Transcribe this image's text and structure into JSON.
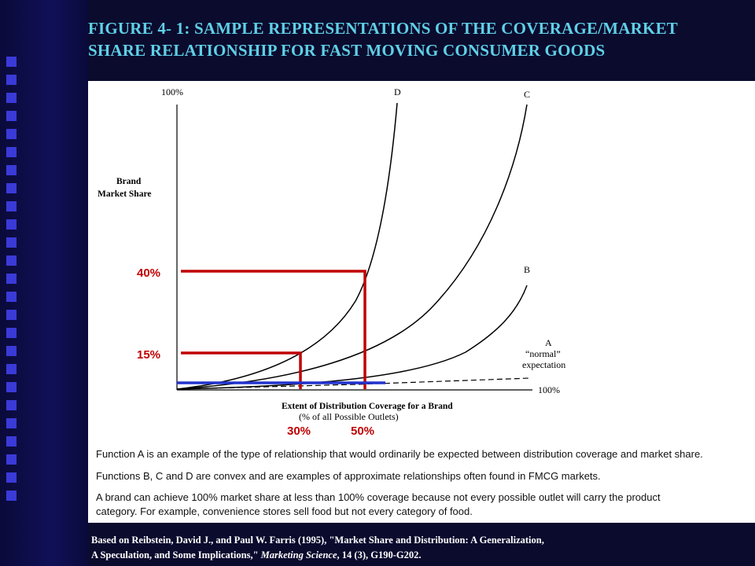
{
  "title": {
    "line1": "FIGURE 4- 1: SAMPLE REPRESENTATIONS OF THE COVERAGE/MARKET",
    "line2": "SHARE RELATIONSHIP FOR FAST MOVING CONSUMER GOODS"
  },
  "chart": {
    "y_top_label": "100%",
    "x_right_label": "100%",
    "ylabel_line1": "Brand",
    "ylabel_line2": "Market  Share",
    "xlabel_line1": "Extent of Distribution Coverage for a Brand",
    "xlabel_line2": "(% of all Possible Outlets)",
    "curve_D": "D",
    "curve_C": "C",
    "curve_B": "B",
    "curve_A": "A",
    "curve_A_note1": "“normal”",
    "curve_A_note2": "expectation",
    "marker_y_40": "40%",
    "marker_y_15": "15%",
    "marker_x_30": "30%",
    "marker_x_50": "50%",
    "colors": {
      "marker": "#c00000",
      "baseline": "#2233cc",
      "curve": "#000000"
    }
  },
  "notes": {
    "n1": "Function A is an example of the type of relationship that would ordinarily be expected between distribution coverage and market share.",
    "n2": "Functions B, C and D are convex and are examples of approximate relationships often found in FMCG markets.",
    "n3a": "A brand can achieve 100% market share at less than 100% coverage because not every possible outlet will carry the product",
    "n3b": "category.  For example, convenience stores sell food but not every category of food."
  },
  "footer": {
    "line1": "Based on Reibstein, David J., and Paul W. Farris (1995), \"Market Share and Distribution: A Generalization,",
    "line2_a": "A Speculation, and Some Implications,\" ",
    "line2_journal": "Marketing Science",
    "line2_b": ", 14 (3), G190-G202."
  }
}
